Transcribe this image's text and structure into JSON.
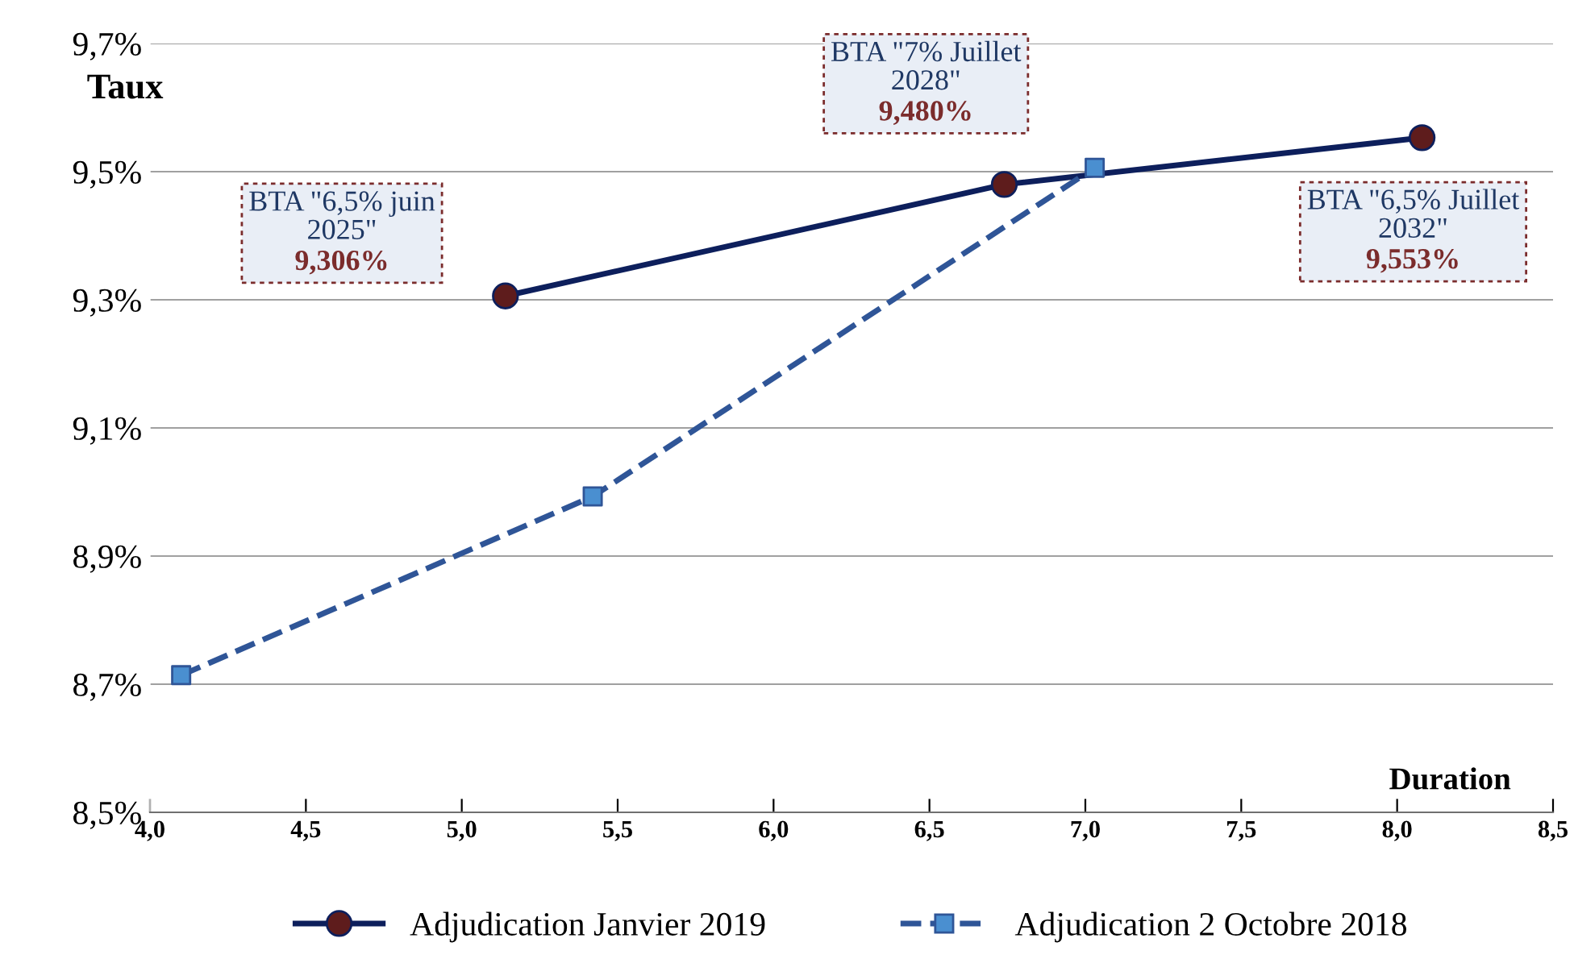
{
  "chart_data": {
    "type": "line",
    "ylabel": "Taux",
    "xlabel": "Duration",
    "xlim": [
      4.0,
      8.5
    ],
    "xticks": [
      {
        "value": 4.0,
        "label": "4,0"
      },
      {
        "value": 4.5,
        "label": "4,5"
      },
      {
        "value": 5.0,
        "label": "5,0"
      },
      {
        "value": 5.5,
        "label": "5,5"
      },
      {
        "value": 6.0,
        "label": "6,0"
      },
      {
        "value": 6.5,
        "label": "6,5"
      },
      {
        "value": 7.0,
        "label": "7,0"
      },
      {
        "value": 7.5,
        "label": "7,5"
      },
      {
        "value": 8.0,
        "label": "8,0"
      },
      {
        "value": 8.5,
        "label": "8,5"
      }
    ],
    "ylim": [
      8.5,
      9.7
    ],
    "yticks": [
      {
        "value": 8.5,
        "label": "8,5%"
      },
      {
        "value": 8.7,
        "label": "8,7%"
      },
      {
        "value": 8.9,
        "label": "8,9%"
      },
      {
        "value": 9.1,
        "label": "9,1%"
      },
      {
        "value": 9.3,
        "label": "9,3%"
      },
      {
        "value": 9.5,
        "label": "9,5%"
      },
      {
        "value": 9.7,
        "label": "9,7%"
      }
    ],
    "grid": "y",
    "legend": "bottom",
    "series": [
      {
        "name": "Adjudication Janvier 2019",
        "color": "#0d1f5c",
        "colors": [
          "#5e1c1c",
          "#5e1c1c",
          "#5e1c1c"
        ],
        "marker": "circle",
        "line_style": "solid",
        "x": [
          5.14,
          6.74,
          8.08
        ],
        "values": [
          9.306,
          9.48,
          9.553
        ]
      },
      {
        "name": "Adjudication 2 Octobre 2018",
        "color": "#2f5597",
        "colors": [
          "#4a8fd0",
          "#4a8fd0",
          "#4a8fd0"
        ],
        "marker": "square",
        "line_style": "dashed",
        "x": [
          4.1,
          5.42,
          7.03
        ],
        "values": [
          8.714,
          8.993,
          9.506
        ]
      }
    ],
    "annotations": [
      "BTA \"6,5% juin\n2025\"",
      "9,306%",
      "BTA \"7% Juillet\n2028\"",
      "9,480%",
      "BTA \"6,5% Juillet\n2032\"",
      "9,553%"
    ]
  }
}
